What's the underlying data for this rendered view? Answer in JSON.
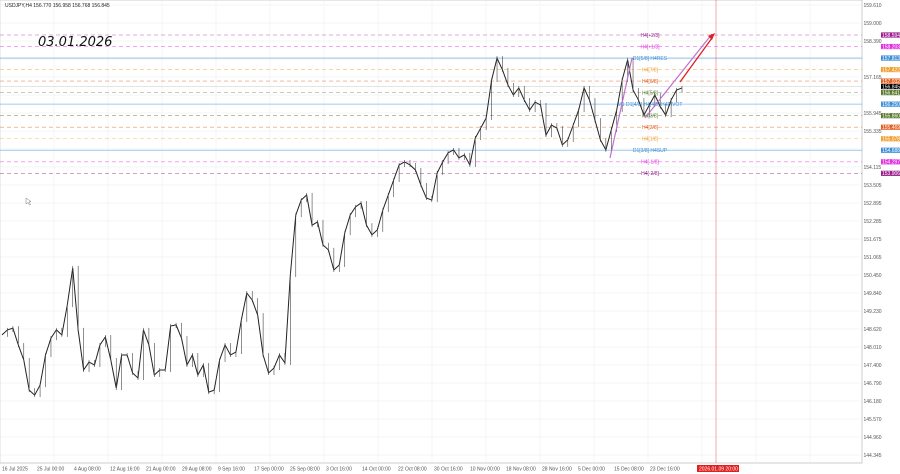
{
  "header": {
    "symbol_info": "USDJPY,H4  156.770 156.958 156.768 156.845"
  },
  "annotation": {
    "date_text": "03.01.2026"
  },
  "chart_data": {
    "type": "candlestick-line",
    "symbol": "USDJPY",
    "timeframe": "H4",
    "ohlc_last": {
      "open": 156.77,
      "high": 156.958,
      "low": 156.768,
      "close": 156.845
    },
    "ylim": [
      144.1,
      159.78
    ],
    "grid": true,
    "y_ticks": [
      "159.610",
      "159.000",
      "158.390",
      "157.165",
      "155.945",
      "155.335",
      "154.115",
      "153.505",
      "152.895",
      "152.285",
      "151.675",
      "151.065",
      "150.450",
      "149.840",
      "149.230",
      "148.620",
      "148.010",
      "147.400",
      "146.790",
      "146.180",
      "145.570",
      "144.960",
      "144.345"
    ],
    "x_ticks": [
      "16 Jul 2025",
      "25 Jul 00:00",
      "4 Aug 08:00",
      "12 Aug 16:00",
      "21 Aug 00:00",
      "29 Aug 08:00",
      "9 Sep 16:00",
      "17 Sep 00:00",
      "25 Sep 08:00",
      "3 Oct 16:00",
      "14 Oct 00:00",
      "22 Oct 08:00",
      "30 Oct 16:00",
      "10 Nov 00:00",
      "18 Nov 08:00",
      "28 Nov 16:00",
      "5 Dec 00:00",
      "15 Dec 08:00",
      "23 Dec 16:00"
    ],
    "close_approx": [
      148.43,
      148.6,
      148.66,
      148.09,
      147.58,
      146.56,
      146.39,
      146.73,
      147.75,
      148.32,
      148.6,
      148.43,
      149.44,
      150.7,
      148.6,
      147.24,
      147.51,
      147.41,
      148.09,
      148.36,
      147.58,
      146.63,
      147.75,
      147.75,
      147.14,
      146.97,
      148.6,
      148.09,
      147.07,
      147.24,
      147.24,
      148.73,
      148.77,
      148.32,
      147.41,
      147.75,
      147.07,
      147.41,
      146.49,
      146.56,
      147.58,
      148.09,
      147.75,
      147.85,
      148.94,
      149.85,
      149.61,
      149.1,
      147.75,
      147.14,
      147.31,
      147.75,
      147.48,
      150.46,
      152.49,
      153.0,
      153.17,
      152.15,
      152.26,
      151.48,
      151.31,
      150.63,
      150.8,
      151.88,
      152.49,
      152.77,
      152.9,
      152.15,
      151.82,
      151.99,
      152.66,
      153.17,
      153.68,
      154.19,
      154.29,
      154.19,
      154.02,
      153.51,
      153.07,
      153.0,
      153.92,
      154.29,
      154.6,
      154.7,
      154.43,
      154.53,
      154.19,
      155.1,
      155.44,
      155.78,
      157.07,
      157.81,
      157.41,
      156.9,
      156.56,
      156.8,
      156.39,
      156.05,
      156.32,
      156.22,
      155.2,
      155.54,
      155.44,
      154.87,
      155.04,
      155.54,
      156.05,
      156.8,
      156.39,
      155.71,
      155.04,
      154.7,
      155.38,
      156.05,
      157.07,
      157.75,
      156.73,
      156.39,
      155.88,
      156.22,
      156.56,
      156.17,
      155.88,
      156.39,
      156.73,
      156.8
    ],
    "levels": [
      {
        "label": "H4[+2/8]",
        "price": 158.594,
        "price_text": "158.594",
        "color": "#9b1f8c",
        "style": "dashed"
      },
      {
        "label": "H4[+1/8]",
        "price": 158.203,
        "price_text": "158.203",
        "color": "#e030e0",
        "style": "dashed"
      },
      {
        "label": "D1[5/8] H4RES",
        "price": 157.813,
        "price_text": "157.813",
        "color": "#3b8fd8",
        "style": "solid"
      },
      {
        "label": "H4[7/8]",
        "price": 157.422,
        "price_text": "157.422",
        "color": "#f0a030",
        "style": "dashed"
      },
      {
        "label": "H4[6/8]",
        "price": 157.032,
        "price_text": "157.032",
        "color": "#e06020",
        "style": "dashed"
      },
      {
        "label": "H4[5/8]",
        "price": 156.641,
        "price_text": "156.641",
        "color": "#5a7a30",
        "style": "dashed"
      },
      {
        "label": "M1 D1[4/8] H4[4/8] H4PIVOT",
        "price": 156.25,
        "price_text": "156.250",
        "color": "#3b8fd8",
        "style": "solid"
      },
      {
        "label": "H4[3/8]",
        "price": 155.86,
        "price_text": "155.860",
        "color": "#5a7a30",
        "style": "dashed"
      },
      {
        "label": "H4[2/8]",
        "price": 155.469,
        "price_text": "155.469",
        "color": "#e06020",
        "style": "dashed"
      },
      {
        "label": "H4[1/8]",
        "price": 155.078,
        "price_text": "155.078",
        "color": "#f0a030",
        "style": "dashed"
      },
      {
        "label": "D1[3/8] H4SUP",
        "price": 154.688,
        "price_text": "154.688",
        "color": "#3b8fd8",
        "style": "solid"
      },
      {
        "label": "H4[-1/8]",
        "price": 154.297,
        "price_text": "154.297",
        "color": "#e030e0",
        "style": "dashed"
      },
      {
        "label": "H4[-2/8]",
        "price": 153.906,
        "price_text": "153.906",
        "color": "#9b1f8c",
        "style": "dashed"
      }
    ],
    "current_price": {
      "price": 156.845,
      "price_text": "156.845",
      "color": "#000000"
    },
    "future_marker": {
      "label": "2026.01.09 20:00",
      "color": "#e02020"
    }
  }
}
